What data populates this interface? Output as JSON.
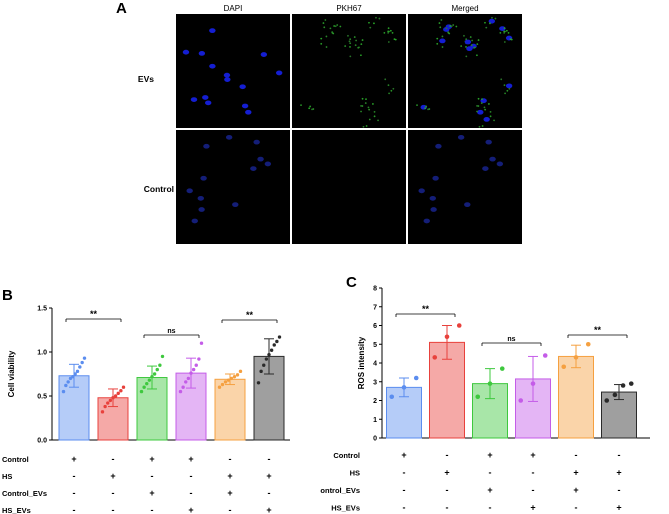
{
  "panelA": {
    "letter": "A",
    "columns": [
      "DAPI",
      "PKH67",
      "Merged"
    ],
    "rows": [
      "EVs",
      "Control"
    ]
  },
  "panelB": {
    "letter": "B",
    "ylabel": "Cell viability",
    "yticks": [
      "0.0",
      "0.5",
      "1.0",
      "1.5"
    ],
    "ylim": [
      0,
      1.5
    ],
    "significance": [
      "**",
      "ns",
      "**"
    ],
    "conditions": [
      {
        "label": "Control",
        "signs": [
          "+",
          "-",
          "+",
          "+",
          "-",
          "-"
        ]
      },
      {
        "label": "HS",
        "signs": [
          "-",
          "+",
          "-",
          "-",
          "+",
          "+"
        ]
      },
      {
        "label": "Control_EVs",
        "signs": [
          "-",
          "-",
          "+",
          "-",
          "+",
          "-"
        ]
      },
      {
        "label": "HS_EVs",
        "signs": [
          "-",
          "-",
          "-",
          "+",
          "-",
          "+"
        ]
      }
    ]
  },
  "panelC": {
    "letter": "C",
    "ylabel": "ROS intensity",
    "yticks": [
      "0",
      "1",
      "2",
      "3",
      "4",
      "5",
      "6",
      "7",
      "8"
    ],
    "ylim": [
      0,
      8
    ],
    "significance": [
      "**",
      "ns",
      "**"
    ],
    "conditions": [
      {
        "label": "Control",
        "signs": [
          "+",
          "-",
          "+",
          "+",
          "-",
          "-"
        ]
      },
      {
        "label": "HS",
        "signs": [
          "-",
          "+",
          "-",
          "-",
          "+",
          "+"
        ]
      },
      {
        "label": "Control_EVs",
        "signs": [
          "-",
          "-",
          "+",
          "-",
          "+",
          "-"
        ]
      },
      {
        "label": "HS_EVs",
        "signs": [
          "-",
          "-",
          "-",
          "+",
          "-",
          "+"
        ]
      }
    ]
  },
  "chart_data": [
    {
      "type": "bar",
      "ylabel": "Cell viability",
      "ylim": [
        0,
        1.5
      ],
      "bars": [
        {
          "mean": 0.73,
          "sd": 0.13,
          "color": "#5b8def",
          "points": [
            0.55,
            0.62,
            0.66,
            0.7,
            0.72,
            0.75,
            0.78,
            0.83,
            0.88,
            0.93
          ]
        },
        {
          "mean": 0.48,
          "sd": 0.1,
          "color": "#e8413c",
          "points": [
            0.32,
            0.38,
            0.42,
            0.45,
            0.48,
            0.5,
            0.53,
            0.56,
            0.6
          ]
        },
        {
          "mean": 0.71,
          "sd": 0.13,
          "color": "#3ec83e",
          "points": [
            0.55,
            0.6,
            0.64,
            0.68,
            0.72,
            0.75,
            0.8,
            0.85,
            0.95
          ]
        },
        {
          "mean": 0.76,
          "sd": 0.17,
          "color": "#c45ce8",
          "points": [
            0.55,
            0.6,
            0.66,
            0.7,
            0.76,
            0.8,
            0.85,
            0.92,
            1.1
          ]
        },
        {
          "mean": 0.69,
          "sd": 0.06,
          "color": "#f5a040",
          "points": [
            0.6,
            0.63,
            0.66,
            0.68,
            0.7,
            0.72,
            0.74,
            0.78
          ]
        },
        {
          "mean": 0.95,
          "sd": 0.2,
          "color": "#2a2a2a",
          "points": [
            0.65,
            0.78,
            0.85,
            0.92,
            0.97,
            1.02,
            1.08,
            1.12,
            1.17
          ]
        }
      ]
    },
    {
      "type": "bar",
      "ylabel": "ROS intensity",
      "ylim": [
        0,
        8
      ],
      "bars": [
        {
          "mean": 2.7,
          "sd": 0.5,
          "color": "#5b8def",
          "points": [
            2.2,
            2.7,
            3.2
          ]
        },
        {
          "mean": 5.1,
          "sd": 0.9,
          "color": "#e8413c",
          "points": [
            4.3,
            5.4,
            6.0
          ]
        },
        {
          "mean": 2.9,
          "sd": 0.8,
          "color": "#3ec83e",
          "points": [
            2.2,
            2.9,
            3.7
          ]
        },
        {
          "mean": 3.15,
          "sd": 1.2,
          "color": "#c45ce8",
          "points": [
            2.0,
            2.9,
            4.4
          ]
        },
        {
          "mean": 4.35,
          "sd": 0.6,
          "color": "#f5a040",
          "points": [
            3.8,
            4.3,
            5.0
          ]
        },
        {
          "mean": 2.45,
          "sd": 0.4,
          "color": "#2a2a2a",
          "points": [
            2.0,
            2.3,
            2.8,
            2.9
          ]
        }
      ]
    }
  ]
}
